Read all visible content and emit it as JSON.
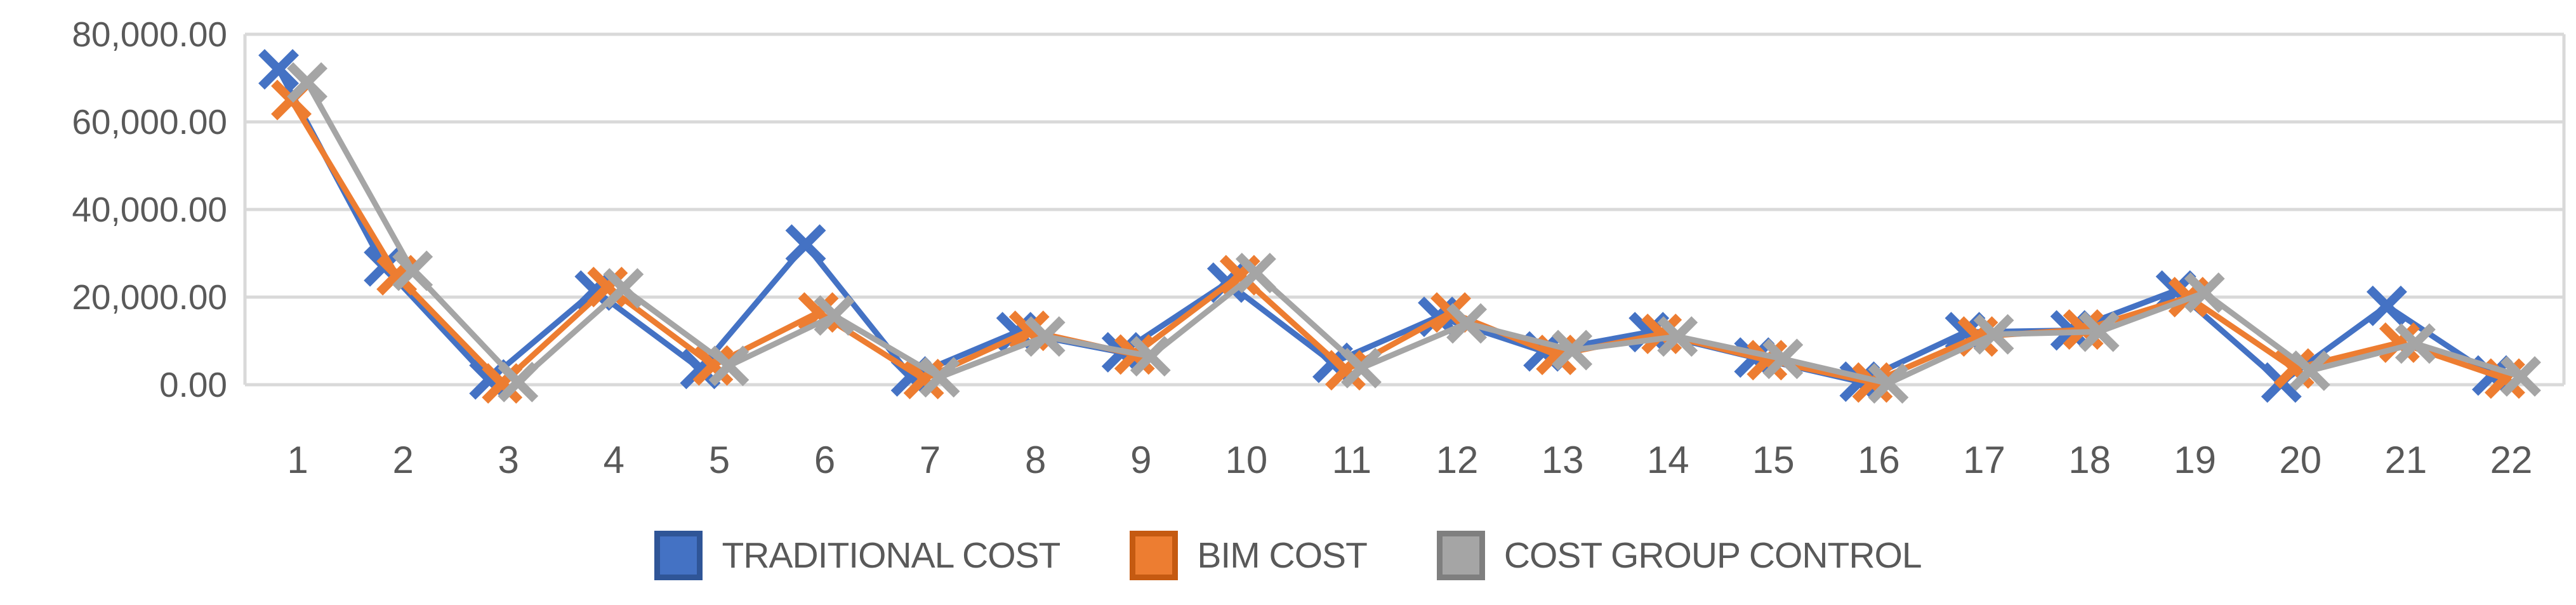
{
  "chart_data": {
    "type": "line",
    "title": "",
    "xlabel": "",
    "ylabel": "",
    "categories": [
      "1",
      "2",
      "3",
      "4",
      "5",
      "6",
      "7",
      "8",
      "9",
      "10",
      "11",
      "12",
      "13",
      "14",
      "15",
      "16",
      "17",
      "18",
      "19",
      "20",
      "21",
      "22"
    ],
    "y_ticks": [
      "80,000.00",
      "60,000.00",
      "40,000.00",
      "20,000.00",
      "0.00"
    ],
    "ylim": [
      0,
      80000
    ],
    "y_step": 20000,
    "grid": true,
    "legend_position": "bottom",
    "marker": "x",
    "axis_text_color": "#595959",
    "gridline_color": "#D9D9D9",
    "series": [
      {
        "name": "TRADITIONAL COST",
        "color": "#4472C4",
        "border_color": "#2F5597",
        "x_offset": -30,
        "values": [
          72000,
          27000,
          1200,
          21500,
          3600,
          32000,
          1900,
          12000,
          7400,
          23300,
          5000,
          15500,
          7600,
          12000,
          6200,
          700,
          12000,
          12400,
          21500,
          500,
          18000,
          2100
        ]
      },
      {
        "name": "BIM COST",
        "color": "#ED7D31",
        "border_color": "#C55A11",
        "x_offset": -10,
        "values": [
          65000,
          25000,
          300,
          22300,
          4400,
          16500,
          1300,
          12300,
          6900,
          25000,
          3300,
          16500,
          6800,
          11600,
          5600,
          500,
          11000,
          12600,
          20000,
          3700,
          9600,
          1400
        ]
      },
      {
        "name": "COST GROUP CONTROL",
        "color": "#A5A5A5",
        "border_color": "#7F7F7F",
        "x_offset": 15,
        "values": [
          69000,
          26000,
          600,
          22000,
          4300,
          15800,
          1700,
          11000,
          6500,
          25500,
          3800,
          14000,
          7900,
          11000,
          5900,
          300,
          11500,
          12100,
          21000,
          3200,
          9400,
          1900
        ]
      }
    ]
  }
}
